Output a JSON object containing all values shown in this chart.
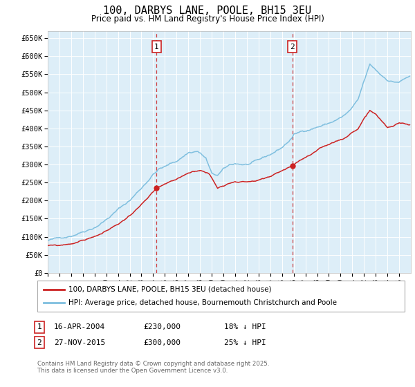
{
  "title": "100, DARBYS LANE, POOLE, BH15 3EU",
  "subtitle": "Price paid vs. HM Land Registry's House Price Index (HPI)",
  "hpi_color": "#7fbfdf",
  "price_color": "#cc2222",
  "legend1": "100, DARBYS LANE, POOLE, BH15 3EU (detached house)",
  "legend2": "HPI: Average price, detached house, Bournemouth Christchurch and Poole",
  "marker1_label": "1",
  "marker2_label": "2",
  "marker1_date": "16-APR-2004",
  "marker1_price": "£230,000",
  "marker1_hpi": "18% ↓ HPI",
  "marker2_date": "27-NOV-2015",
  "marker2_price": "£300,000",
  "marker2_hpi": "25% ↓ HPI",
  "footer": "Contains HM Land Registry data © Crown copyright and database right 2025.\nThis data is licensed under the Open Government Licence v3.0.",
  "plot_bg_color": "#ddeef8",
  "grid_color": "#ffffff",
  "ylim": [
    0,
    670000
  ],
  "ytick_vals": [
    0,
    50000,
    100000,
    150000,
    200000,
    250000,
    300000,
    350000,
    400000,
    450000,
    500000,
    550000,
    600000,
    650000
  ],
  "ytick_labels": [
    "£0",
    "£50K",
    "£100K",
    "£150K",
    "£200K",
    "£250K",
    "£300K",
    "£350K",
    "£400K",
    "£450K",
    "£500K",
    "£550K",
    "£600K",
    "£650K"
  ],
  "xstart": 1995,
  "xend": 2026,
  "marker1_x": 2004.29,
  "marker2_x": 2015.88
}
